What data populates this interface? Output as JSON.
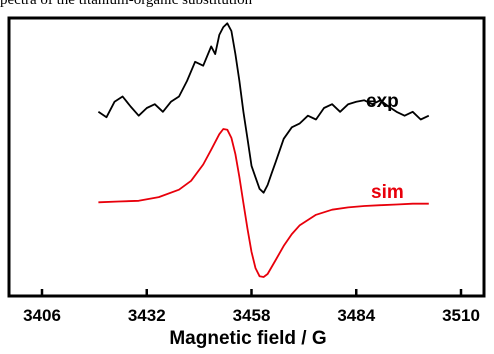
{
  "caption_text": "pectra of the titanium-organic substitution",
  "chart_data": {
    "type": "line",
    "title": "",
    "xlabel": "Magnetic field / G",
    "ylabel": "",
    "xlim": [
      3406,
      3510
    ],
    "xticks": [
      3406,
      3432,
      3458,
      3484,
      3510
    ],
    "xtick_labels": [
      "3406",
      "3432",
      "3458",
      "3484",
      "3510"
    ],
    "yticks_shown": false,
    "grid": false,
    "legend": "none",
    "series": [
      {
        "name": "exp",
        "color": "#000000",
        "x": [
          3420,
          3422,
          3424,
          3426,
          3428,
          3430,
          3432,
          3434,
          3436,
          3438,
          3440,
          3442,
          3444,
          3446,
          3448,
          3449,
          3450,
          3451,
          3452,
          3453,
          3454,
          3455,
          3456,
          3457,
          3458,
          3459,
          3460,
          3461,
          3462,
          3463,
          3464,
          3466,
          3468,
          3470,
          3472,
          3474,
          3476,
          3478,
          3480,
          3482,
          3484,
          3486,
          3488,
          3490,
          3492,
          3494,
          3496,
          3498,
          3500,
          3502
        ],
        "y": [
          -0.05,
          -0.12,
          0.08,
          0.15,
          0.02,
          -0.1,
          0.0,
          0.05,
          -0.05,
          0.08,
          0.15,
          0.35,
          0.6,
          0.55,
          0.8,
          0.7,
          0.95,
          1.05,
          1.1,
          1.0,
          0.7,
          0.35,
          -0.05,
          -0.4,
          -0.75,
          -0.9,
          -1.05,
          -1.1,
          -1.0,
          -0.85,
          -0.7,
          -0.4,
          -0.25,
          -0.2,
          -0.1,
          -0.15,
          0.0,
          0.05,
          -0.05,
          0.05,
          0.08,
          0.1,
          0.05,
          0.1,
          0.02,
          -0.05,
          -0.1,
          -0.05,
          -0.15,
          -0.1
        ]
      },
      {
        "name": "sim",
        "color": "#e8000b",
        "center": 3456,
        "x": [
          3420,
          3425,
          3430,
          3435,
          3440,
          3443,
          3446,
          3448,
          3450,
          3451,
          3452,
          3453,
          3454,
          3455,
          3456,
          3457,
          3458,
          3459,
          3460,
          3461,
          3462,
          3464,
          3466,
          3468,
          3470,
          3474,
          3478,
          3482,
          3486,
          3490,
          3494,
          3498,
          3502
        ],
        "y": [
          0.01,
          0.02,
          0.03,
          0.08,
          0.18,
          0.3,
          0.52,
          0.72,
          0.93,
          1.0,
          0.99,
          0.88,
          0.66,
          0.35,
          0.0,
          -0.35,
          -0.66,
          -0.88,
          -0.99,
          -1.0,
          -0.96,
          -0.77,
          -0.58,
          -0.42,
          -0.3,
          -0.16,
          -0.09,
          -0.06,
          -0.04,
          -0.03,
          -0.02,
          -0.01,
          -0.01
        ]
      }
    ],
    "annotations": [
      {
        "text": "exp",
        "color": "#000000",
        "near_series": "exp"
      },
      {
        "text": "sim",
        "color": "#e8000b",
        "near_series": "sim"
      }
    ]
  }
}
